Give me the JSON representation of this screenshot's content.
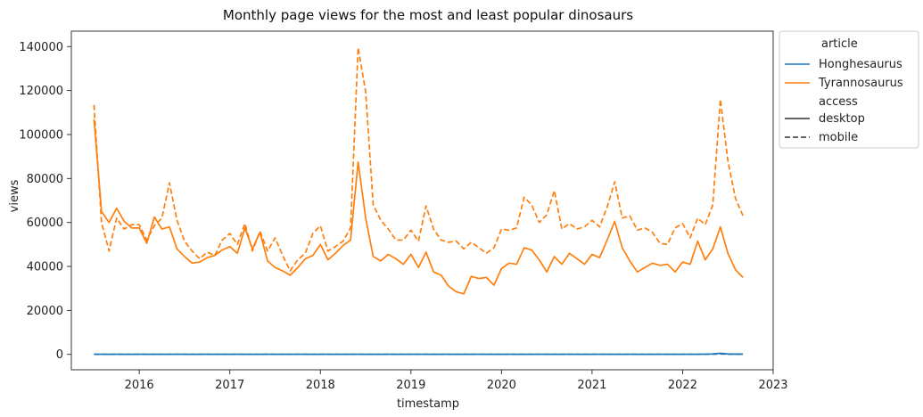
{
  "chart_data": {
    "type": "line",
    "title": "Monthly page views for the most and least popular dinosaurs",
    "xlabel": "timestamp",
    "ylabel": "views",
    "x_ticks": [
      "2016",
      "2017",
      "2018",
      "2019",
      "2020",
      "2021",
      "2022",
      "2023"
    ],
    "y_ticks": [
      "0",
      "20000",
      "40000",
      "60000",
      "80000",
      "100000",
      "120000",
      "140000"
    ],
    "xlim": [
      "2015-04",
      "2023-01"
    ],
    "ylim": [
      -7000,
      147000
    ],
    "grid": false,
    "legend": {
      "placement": "outside-right-top",
      "hue_title": "article",
      "style_title": "access",
      "hue_entries": [
        {
          "name": "Honghesaurus",
          "color": "#1f77b4"
        },
        {
          "name": "Tyrannosaurus",
          "color": "#ff7f0e"
        }
      ],
      "style_entries": [
        {
          "name": "desktop",
          "dash": "solid"
        },
        {
          "name": "mobile",
          "dash": "dashed"
        }
      ]
    },
    "x_start": "2015-07",
    "x_end": "2022-09",
    "series": [
      {
        "name": "Tyrannosaurus",
        "access": "desktop",
        "color": "#ff7f0e",
        "dash": "solid",
        "values": [
          107000,
          65000,
          60000,
          66500,
          60500,
          57500,
          57500,
          50500,
          62500,
          57000,
          58000,
          48000,
          44500,
          41500,
          42000,
          44000,
          45000,
          47500,
          49000,
          46000,
          57500,
          48000,
          55500,
          42500,
          39500,
          38000,
          36000,
          39500,
          43500,
          45000,
          50000,
          43000,
          46000,
          49500,
          52000,
          87500,
          62000,
          44500,
          42500,
          45500,
          43500,
          41000,
          45500,
          39500,
          46500,
          37500,
          36000,
          31000,
          28500,
          27500,
          35500,
          34500,
          35000,
          31500,
          39000,
          41500,
          41000,
          48500,
          47500,
          43000,
          37500,
          44500,
          41000,
          46000,
          43500,
          41000,
          45500,
          44000,
          52000,
          60500,
          48500,
          42500,
          37500,
          39500,
          41500,
          40500,
          41000,
          37500,
          42000,
          41000,
          51500,
          43000,
          48000,
          58000,
          46000,
          38500,
          35000
        ]
      },
      {
        "name": "Tyrannosaurus",
        "access": "mobile",
        "color": "#ff7f0e",
        "dash": "dashed",
        "values": [
          113500,
          60000,
          47000,
          62000,
          57000,
          59000,
          59000,
          52000,
          58500,
          62000,
          78000,
          61000,
          51500,
          47000,
          43500,
          46500,
          45000,
          52000,
          55000,
          50000,
          59500,
          47000,
          56000,
          47000,
          53000,
          45000,
          38000,
          43000,
          46000,
          55000,
          58500,
          47000,
          49000,
          51500,
          57500,
          139500,
          119500,
          68000,
          61000,
          57000,
          52000,
          52000,
          56500,
          51500,
          67500,
          57000,
          52000,
          51000,
          51500,
          48000,
          51000,
          48500,
          46000,
          48500,
          57000,
          56500,
          57500,
          71500,
          68000,
          60000,
          63500,
          74500,
          57000,
          59500,
          57000,
          58000,
          61000,
          58000,
          67000,
          78500,
          62000,
          63000,
          56500,
          57500,
          55500,
          50500,
          50000,
          57500,
          59500,
          53000,
          62000,
          59000,
          68000,
          116000,
          88000,
          71000,
          63000
        ]
      },
      {
        "name": "Honghesaurus",
        "access": "desktop",
        "color": "#1f77b4",
        "dash": "solid",
        "values": [
          50,
          60,
          55,
          70,
          50,
          45,
          60,
          55,
          50,
          45,
          55,
          60,
          50,
          45,
          55,
          60,
          50,
          45,
          55,
          60,
          50,
          45,
          55,
          60,
          50,
          45,
          55,
          60,
          50,
          45,
          55,
          60,
          50,
          45,
          55,
          60,
          50,
          45,
          55,
          60,
          50,
          45,
          55,
          60,
          50,
          45,
          55,
          60,
          50,
          45,
          55,
          60,
          50,
          45,
          55,
          60,
          50,
          45,
          55,
          60,
          50,
          45,
          55,
          60,
          50,
          45,
          55,
          60,
          50,
          45,
          55,
          60,
          50,
          45,
          55,
          60,
          50,
          45,
          55,
          60,
          50,
          120,
          220,
          500,
          200,
          150,
          130
        ]
      },
      {
        "name": "Honghesaurus",
        "access": "mobile",
        "color": "#1f77b4",
        "dash": "dashed",
        "values": [
          30,
          40,
          35,
          45,
          30,
          30,
          40,
          35,
          30,
          30,
          35,
          40,
          30,
          30,
          35,
          40,
          30,
          30,
          35,
          40,
          30,
          30,
          35,
          40,
          30,
          30,
          35,
          40,
          30,
          30,
          35,
          40,
          30,
          30,
          35,
          40,
          30,
          30,
          35,
          40,
          30,
          30,
          35,
          40,
          30,
          30,
          35,
          40,
          30,
          30,
          35,
          40,
          30,
          30,
          35,
          40,
          30,
          30,
          35,
          40,
          30,
          30,
          35,
          40,
          30,
          30,
          35,
          40,
          30,
          30,
          35,
          40,
          30,
          30,
          35,
          40,
          30,
          30,
          35,
          40,
          30,
          60,
          100,
          200,
          100,
          80,
          70
        ]
      }
    ]
  }
}
